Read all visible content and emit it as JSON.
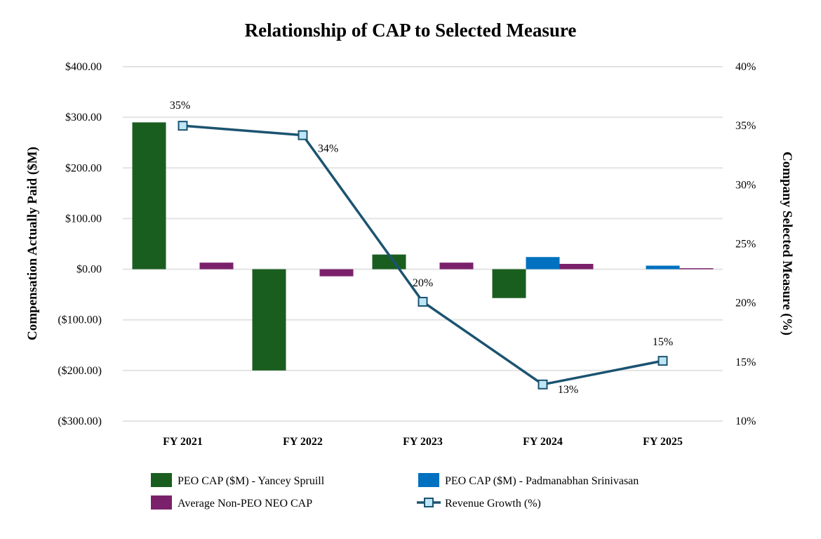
{
  "chart_data": {
    "type": "bar",
    "title": "Relationship of CAP to Selected Measure",
    "categories": [
      "FY 2021",
      "FY 2022",
      "FY 2023",
      "FY 2024",
      "FY 2025"
    ],
    "ylabel": "Compensation Actually Paid ($M)",
    "y2label": "Company Selected Measure (%)",
    "ylim": [
      -300,
      400
    ],
    "y2lim": [
      10,
      40
    ],
    "yticks": [
      "$400.00",
      "$300.00",
      "$200.00",
      "$100.00",
      "$0.00",
      "($100.00)",
      "($200.00)",
      "($300.00)"
    ],
    "y2ticks": [
      "40%",
      "35%",
      "30%",
      "25%",
      "20%",
      "15%",
      "10%"
    ],
    "grid": true,
    "legend_position": "bottom",
    "series": [
      {
        "name": "PEO CAP ($M) - Yancey Spruill",
        "type": "bar",
        "color": "#1a5e1f",
        "values": [
          290,
          -200,
          29,
          -57,
          null
        ]
      },
      {
        "name": "PEO CAP ($M) - Padmanabhan Srinivasan",
        "type": "bar",
        "color": "#0070c0",
        "values": [
          null,
          null,
          null,
          24,
          7
        ]
      },
      {
        "name": "Average Non-PEO NEO CAP",
        "type": "bar",
        "color": "#7b216b",
        "values": [
          13,
          -14,
          13,
          10.5,
          2
        ]
      },
      {
        "name": "Revenue Growth (%)",
        "type": "line",
        "axis": "right",
        "color": "#1b5370",
        "values": [
          35,
          34.2,
          20.1,
          13.1,
          15.1
        ],
        "labels": [
          "35%",
          "34%",
          "20%",
          "13%",
          "15%"
        ]
      }
    ]
  }
}
